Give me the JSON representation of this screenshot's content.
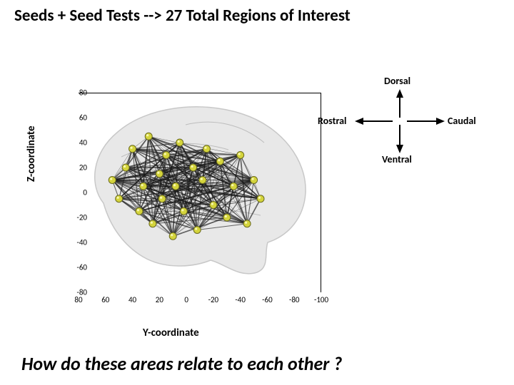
{
  "title": "Seeds + Seed Tests  -->  27 Total Regions of Interest",
  "bottom_question": "How do these areas relate to each other ?",
  "axes": {
    "y_label": "Z-coordinate",
    "x_label": "Y-coordinate",
    "y_ticks": [
      80,
      60,
      40,
      20,
      0,
      -20,
      -40,
      -60,
      -80
    ],
    "x_ticks": [
      80,
      60,
      40,
      20,
      0,
      -20,
      -40,
      -60,
      -80,
      -100
    ],
    "y_range": [
      -80,
      80
    ],
    "x_range": [
      -100,
      80
    ]
  },
  "compass": {
    "top": "Dorsal",
    "bottom": "Ventral",
    "left": "Rostral",
    "right": "Caudal",
    "arrow_color": "#000000"
  },
  "brain": {
    "outline_color": "#c8c8c8",
    "fill_color": "#e8e8e8",
    "shadow_color": "#a0a0a0",
    "node_fill": "#d4d43c",
    "node_stroke": "#6b6b1e",
    "edge_color": "#1a1a1a",
    "edge_opacity": 0.65,
    "nodes": [
      {
        "y": 55,
        "z": 10
      },
      {
        "y": 50,
        "z": -5
      },
      {
        "y": 45,
        "z": 20
      },
      {
        "y": 40,
        "z": 35
      },
      {
        "y": 35,
        "z": -15
      },
      {
        "y": 32,
        "z": 5
      },
      {
        "y": 28,
        "z": 45
      },
      {
        "y": 25,
        "z": -25
      },
      {
        "y": 20,
        "z": 15
      },
      {
        "y": 18,
        "z": -5
      },
      {
        "y": 15,
        "z": 30
      },
      {
        "y": 10,
        "z": -35
      },
      {
        "y": 8,
        "z": 5
      },
      {
        "y": 5,
        "z": 40
      },
      {
        "y": 2,
        "z": -15
      },
      {
        "y": -5,
        "z": 20
      },
      {
        "y": -8,
        "z": -30
      },
      {
        "y": -12,
        "z": 10
      },
      {
        "y": -15,
        "z": 35
      },
      {
        "y": -20,
        "z": -10
      },
      {
        "y": -25,
        "z": 25
      },
      {
        "y": -30,
        "z": -20
      },
      {
        "y": -35,
        "z": 5
      },
      {
        "y": -40,
        "z": 30
      },
      {
        "y": -45,
        "z": -25
      },
      {
        "y": -50,
        "z": 10
      },
      {
        "y": -55,
        "z": -5
      }
    ],
    "node_radius": 5
  },
  "colors": {
    "background": "#ffffff",
    "text": "#000000",
    "axis": "#000000"
  }
}
